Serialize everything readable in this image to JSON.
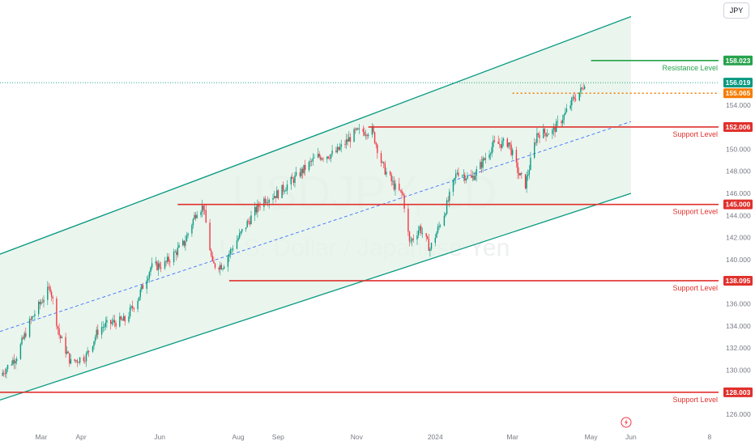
{
  "chart_data": {
    "type": "candlestick",
    "symbol_watermark": "USDJPY, 1D",
    "description_watermark": "U.S. Dollar / Japanese Yen",
    "currency": "JPY",
    "y_range": [
      125.5,
      163.5
    ],
    "x_range": [
      "2023-01-28",
      "2024-08-08"
    ],
    "y_ticks": [
      "126.000",
      "128.000",
      "130.000",
      "132.000",
      "134.000",
      "136.000",
      "138.000",
      "140.000",
      "142.000",
      "144.000",
      "146.000",
      "148.000",
      "150.000",
      "152.000",
      "154.000"
    ],
    "x_ticks": [
      {
        "date": "2023-03-01",
        "label": "Mar"
      },
      {
        "date": "2023-04-01",
        "label": "Apr"
      },
      {
        "date": "2023-06-01",
        "label": "Jun"
      },
      {
        "date": "2023-08-01",
        "label": "Aug"
      },
      {
        "date": "2023-09-01",
        "label": "Sep"
      },
      {
        "date": "2023-11-01",
        "label": "Nov"
      },
      {
        "date": "2024-01-01",
        "label": "2024"
      },
      {
        "date": "2024-03-01",
        "label": "Mar"
      },
      {
        "date": "2024-05-01",
        "label": "May"
      },
      {
        "date": "2024-06-01",
        "label": "Jun"
      },
      {
        "date": "2024-08-01",
        "label": "8"
      }
    ],
    "channel": {
      "upper": [
        [
          "2023-01-28",
          140.5
        ],
        [
          "2024-06-01",
          162.0
        ]
      ],
      "lower": [
        [
          "2023-01-28",
          127.3
        ],
        [
          "2024-06-01",
          146.0
        ]
      ],
      "middle": [
        [
          "2023-01-28",
          133.5
        ],
        [
          "2024-06-01",
          152.5
        ]
      ]
    },
    "levels": [
      {
        "value": 158.023,
        "label": "158.023",
        "name": "Resistance Level",
        "kind": "resistance",
        "start": "2024-05-01"
      },
      {
        "value": 152.006,
        "label": "152.006",
        "name": "Support Level",
        "kind": "support",
        "start": "2023-11-10"
      },
      {
        "value": 145.0,
        "label": "145.000",
        "name": "Support Level",
        "kind": "support",
        "start": "2023-06-15"
      },
      {
        "value": 138.095,
        "label": "138.095",
        "name": "Support Level",
        "kind": "support",
        "start": "2023-07-25"
      },
      {
        "value": 128.003,
        "label": "128.003",
        "name": "Support Level",
        "kind": "support",
        "start": "2023-01-28"
      }
    ],
    "last_price": {
      "value": 156.019,
      "label": "156.019"
    },
    "marker_price": {
      "value": 155.065,
      "label": "155.065",
      "start": "2024-03-01"
    },
    "series": [
      {
        "name": "USDJPY",
        "points": [
          [
            "2023-01-28",
            129.5
          ],
          [
            "2023-02-10",
            131.3
          ],
          [
            "2023-02-20",
            134.3
          ],
          [
            "2023-03-01",
            136.2
          ],
          [
            "2023-03-08",
            137.5
          ],
          [
            "2023-03-15",
            133.2
          ],
          [
            "2023-03-24",
            130.7
          ],
          [
            "2023-04-05",
            131.3
          ],
          [
            "2023-04-15",
            133.8
          ],
          [
            "2023-04-25",
            134.3
          ],
          [
            "2023-05-05",
            134.5
          ],
          [
            "2023-05-15",
            136.5
          ],
          [
            "2023-05-25",
            139.3
          ],
          [
            "2023-06-05",
            139.6
          ],
          [
            "2023-06-20",
            141.5
          ],
          [
            "2023-06-30",
            144.5
          ],
          [
            "2023-07-05",
            144.8
          ],
          [
            "2023-07-12",
            139.5
          ],
          [
            "2023-07-20",
            139.5
          ],
          [
            "2023-07-28",
            141.2
          ],
          [
            "2023-08-08",
            143.3
          ],
          [
            "2023-08-20",
            145.4
          ],
          [
            "2023-09-01",
            146.0
          ],
          [
            "2023-09-15",
            147.5
          ],
          [
            "2023-10-01",
            149.3
          ],
          [
            "2023-10-15",
            149.6
          ],
          [
            "2023-10-31",
            151.5
          ],
          [
            "2023-11-13",
            151.7
          ],
          [
            "2023-11-21",
            148.5
          ],
          [
            "2023-12-01",
            146.5
          ],
          [
            "2023-12-07",
            145.8
          ],
          [
            "2023-12-12",
            141.5
          ],
          [
            "2023-12-20",
            142.9
          ],
          [
            "2023-12-28",
            141.0
          ],
          [
            "2024-01-08",
            144.2
          ],
          [
            "2024-01-18",
            148.0
          ],
          [
            "2024-01-29",
            147.3
          ],
          [
            "2024-02-05",
            148.5
          ],
          [
            "2024-02-15",
            150.4
          ],
          [
            "2024-02-27",
            150.6
          ],
          [
            "2024-03-06",
            147.7
          ],
          [
            "2024-03-11",
            146.8
          ],
          [
            "2024-03-20",
            151.4
          ],
          [
            "2024-04-01",
            151.6
          ],
          [
            "2024-04-10",
            153.0
          ],
          [
            "2024-04-17",
            154.5
          ],
          [
            "2024-04-24",
            155.4
          ],
          [
            "2024-04-26",
            156.1
          ]
        ]
      }
    ]
  },
  "colors": {
    "channel_line": "#089981",
    "channel_fill": "#e5f3e8",
    "support": "#e0312d",
    "resistance": "#26a24b",
    "last_price": "#089981",
    "marker": "#f57c00",
    "bull": "#089981",
    "bear": "#f23645"
  },
  "icons": {
    "replay": "lightning-icon"
  }
}
